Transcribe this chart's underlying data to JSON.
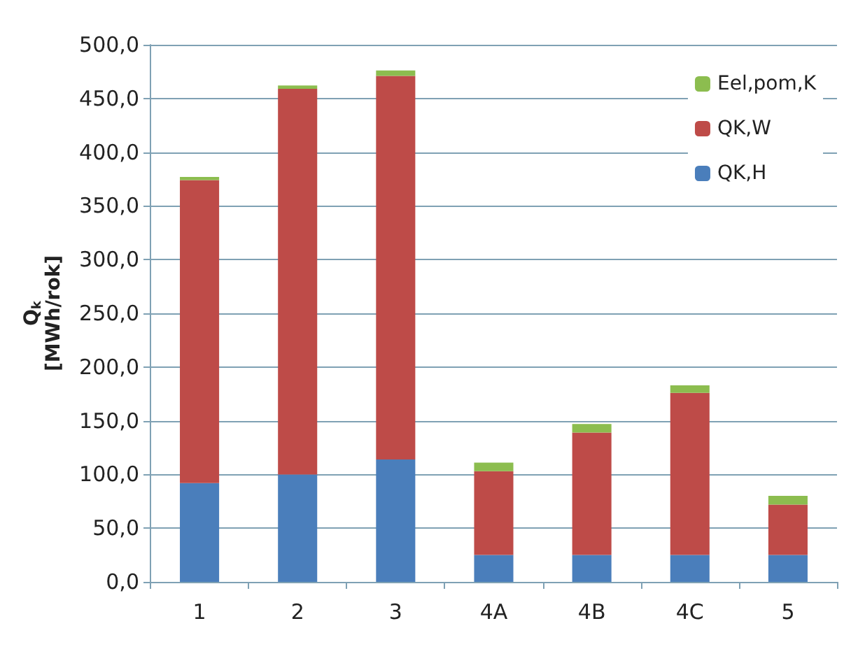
{
  "chart_data": {
    "type": "bar",
    "stacked": true,
    "ylabel": "Q$_{k}$ [MWh/rok]",
    "categories": [
      "1",
      "2",
      "3",
      "4A",
      "4B",
      "4C",
      "5"
    ],
    "series": [
      {
        "name": "QK,H",
        "color": "#4a7ebb",
        "values": [
          92,
          100,
          114,
          25,
          25,
          25,
          25
        ]
      },
      {
        "name": "QK,W",
        "color": "#be4b48",
        "values": [
          282,
          359,
          357,
          78,
          114,
          151,
          47
        ]
      },
      {
        "name": "Eel,pom,K",
        "color": "#8cbd4f",
        "values": [
          3,
          3,
          5,
          8,
          8,
          7,
          8
        ]
      }
    ],
    "ylim": [
      0,
      500
    ],
    "yticks": [
      {
        "value": 0,
        "label": "0,0"
      },
      {
        "value": 50,
        "label": "50,0"
      },
      {
        "value": 100,
        "label": "100,0"
      },
      {
        "value": 150,
        "label": "150,0"
      },
      {
        "value": 200,
        "label": "200,0"
      },
      {
        "value": 250,
        "label": "250,0"
      },
      {
        "value": 300,
        "label": "300,0"
      },
      {
        "value": 350,
        "label": "350,0"
      },
      {
        "value": 400,
        "label": "400,0"
      },
      {
        "value": 450,
        "label": "450,0"
      },
      {
        "value": 500,
        "label": "500,0"
      }
    ],
    "grid": "y",
    "legend": "top right"
  }
}
